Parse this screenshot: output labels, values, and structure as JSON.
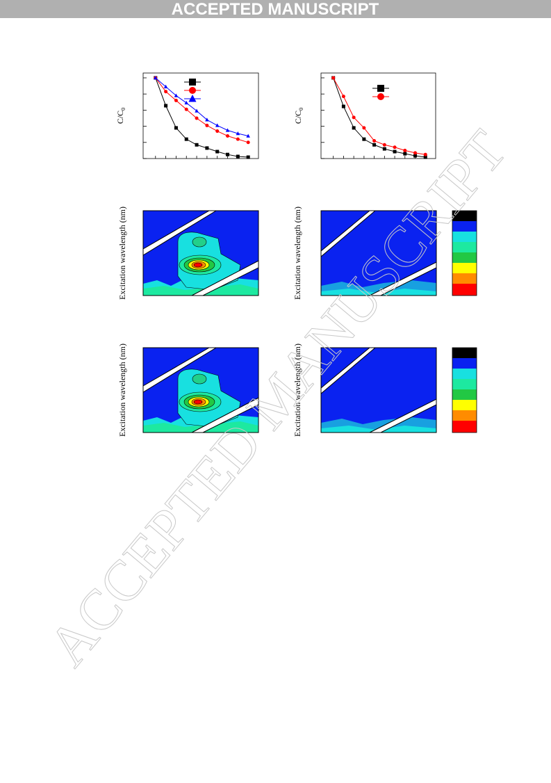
{
  "header": {
    "banner": "ACCEPTED MANUSCRIPT"
  },
  "watermark": "ACCEPTED MANUSCRIPT",
  "chart_data": [
    {
      "type": "line",
      "y_label": "C/C",
      "y_label_subscript": "0",
      "x": [
        0,
        1,
        2,
        3,
        4,
        5,
        6,
        7,
        8,
        9
      ],
      "xlim": [
        -1.2,
        10
      ],
      "ylim": [
        0,
        1.06
      ],
      "yticks": [
        0,
        0.2,
        0.4,
        0.6,
        0.8,
        1.0
      ],
      "series": [
        {
          "color": "#000000",
          "marker": "square",
          "values": [
            1.0,
            0.655,
            0.38,
            0.24,
            0.17,
            0.13,
            0.086,
            0.05,
            0.026,
            0.017
          ]
        },
        {
          "color": "#ff0000",
          "marker": "circle",
          "values": [
            1.0,
            0.83,
            0.72,
            0.61,
            0.5,
            0.41,
            0.34,
            0.28,
            0.24,
            0.2
          ]
        },
        {
          "color": "#0000ff",
          "marker": "triangle",
          "values": [
            1.0,
            0.89,
            0.78,
            0.69,
            0.59,
            0.48,
            0.41,
            0.35,
            0.31,
            0.28
          ]
        }
      ]
    },
    {
      "type": "line",
      "y_label": "C/C",
      "y_label_subscript": "0",
      "x": [
        0,
        1,
        2,
        3,
        4,
        5,
        6,
        7,
        8,
        9
      ],
      "xlim": [
        -1.2,
        10
      ],
      "ylim": [
        0,
        1.06
      ],
      "yticks": [
        0,
        0.2,
        0.4,
        0.6,
        0.8,
        1.0
      ],
      "series": [
        {
          "color": "#000000",
          "marker": "square",
          "values": [
            1.0,
            0.646,
            0.38,
            0.24,
            0.17,
            0.12,
            0.086,
            0.06,
            0.034,
            0.017
          ]
        },
        {
          "color": "#ff0000",
          "marker": "circle",
          "values": [
            1.0,
            0.77,
            0.51,
            0.38,
            0.22,
            0.17,
            0.14,
            0.1,
            0.07,
            0.05
          ]
        }
      ]
    }
  ],
  "contour_plots": [
    {
      "y_label": "Excitation wavelength (nm)"
    },
    {
      "y_label": "Excitation wavelength (nm)"
    },
    {
      "y_label": "Excitation wavelength (nm)"
    },
    {
      "y_label": "Excitation wavelength (nm)"
    }
  ]
}
